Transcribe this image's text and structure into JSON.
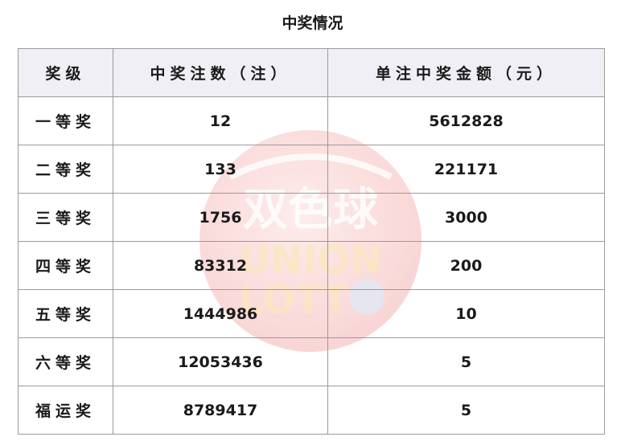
{
  "title": "中奖情况",
  "watermark": {
    "logo_text": "双色球",
    "logo_subtext": "UNION LOTTO"
  },
  "table": {
    "headers": [
      "奖级",
      "中奖注数（注）",
      "单注中奖金额（元）"
    ],
    "rows": [
      {
        "level": "一等奖",
        "count": "12",
        "amount": "5612828"
      },
      {
        "level": "二等奖",
        "count": "133",
        "amount": "221171"
      },
      {
        "level": "三等奖",
        "count": "1756",
        "amount": "3000"
      },
      {
        "level": "四等奖",
        "count": "83312",
        "amount": "200"
      },
      {
        "level": "五等奖",
        "count": "1444986",
        "amount": "10"
      },
      {
        "level": "六等奖",
        "count": "12053436",
        "amount": "5"
      },
      {
        "level": "福运奖",
        "count": "8789417",
        "amount": "5"
      }
    ]
  }
}
